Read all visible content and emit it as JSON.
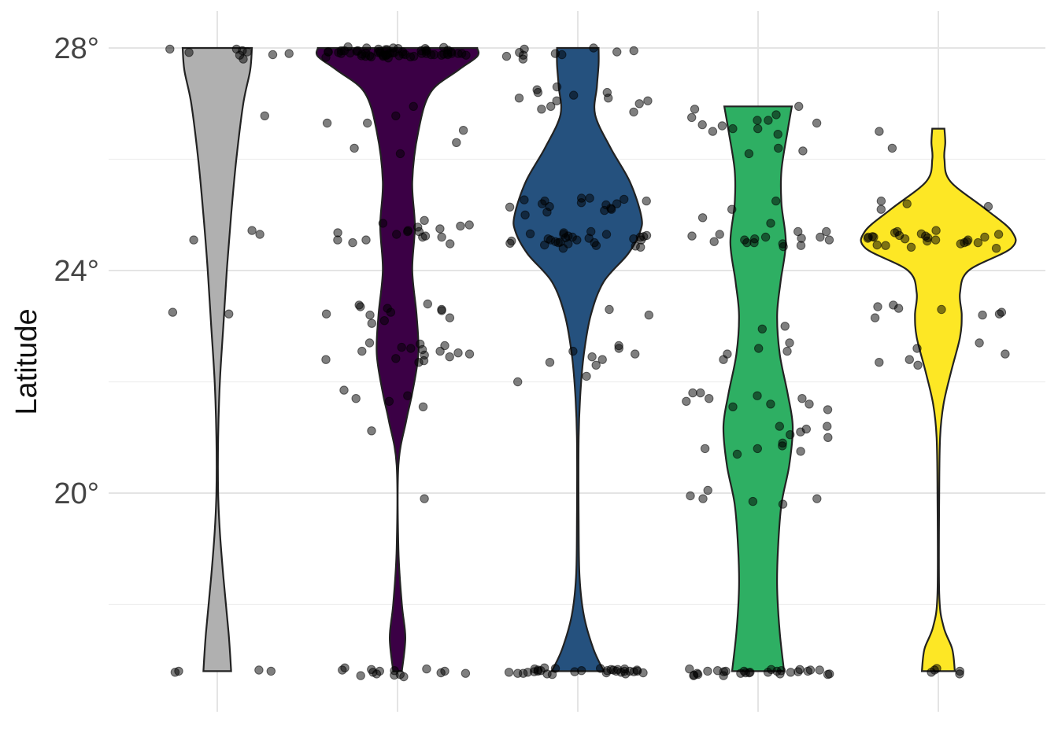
{
  "chart_data": {
    "type": "violin",
    "title": "",
    "xlabel": "",
    "ylabel": "Latitude",
    "ylim": [
      16.9,
      28.65
    ],
    "y_ticks": [
      {
        "value": 28,
        "label": "28°"
      },
      {
        "value": 24,
        "label": "24°"
      },
      {
        "value": 20,
        "label": "20°"
      }
    ],
    "y_minor_ticks": [
      26,
      22,
      18
    ],
    "grid": true,
    "legend": "none",
    "series": [
      {
        "fill": "#b0b0b0",
        "violin_profile": [
          [
            16.8,
            0.16
          ],
          [
            17.5,
            0.13
          ],
          [
            18.5,
            0.07
          ],
          [
            19.3,
            0.03
          ],
          [
            20.0,
            0.01
          ],
          [
            21.0,
            0.01
          ],
          [
            22.0,
            0.03
          ],
          [
            23.0,
            0.07
          ],
          [
            24.0,
            0.11
          ],
          [
            25.0,
            0.16
          ],
          [
            26.0,
            0.22
          ],
          [
            27.0,
            0.3
          ],
          [
            27.6,
            0.38
          ],
          [
            28.0,
            0.4
          ]
        ],
        "points": [
          27.87,
          27.92,
          27.98,
          27.9,
          27.8,
          27.95,
          27.98,
          27.88,
          27.93,
          26.78,
          24.72,
          24.55,
          24.65,
          23.25,
          23.22,
          16.8,
          16.78,
          16.82,
          16.8
        ]
      },
      {
        "fill": "#3b0045",
        "violin_profile": [
          [
            16.8,
            0.05
          ],
          [
            17.4,
            0.09
          ],
          [
            18.0,
            0.05
          ],
          [
            19.0,
            0.01
          ],
          [
            20.5,
            0.01
          ],
          [
            21.3,
            0.1
          ],
          [
            21.8,
            0.17
          ],
          [
            22.5,
            0.24
          ],
          [
            23.2,
            0.22
          ],
          [
            24.0,
            0.17
          ],
          [
            24.8,
            0.2
          ],
          [
            25.6,
            0.17
          ],
          [
            26.5,
            0.24
          ],
          [
            27.2,
            0.38
          ],
          [
            27.6,
            0.7
          ],
          [
            27.85,
            0.92
          ],
          [
            28.0,
            0.92
          ]
        ],
        "points": [
          27.9,
          27.95,
          28.0,
          27.88,
          27.92,
          27.85,
          27.98,
          27.9,
          27.93,
          27.86,
          27.97,
          27.89,
          27.91,
          28.02,
          27.84,
          27.94,
          27.99,
          27.87,
          27.91,
          27.88,
          27.95,
          27.82,
          27.9,
          28.01,
          27.86,
          27.93,
          27.88,
          27.96,
          27.9,
          27.84,
          27.92,
          27.99,
          27.87,
          27.94,
          27.89,
          27.91,
          27.85,
          27.97,
          27.9,
          27.88,
          27.93,
          27.86,
          27.95,
          27.9,
          27.83,
          28.0,
          27.91,
          27.88,
          27.94,
          27.87,
          27.92,
          27.89,
          27.96,
          27.85,
          27.9,
          27.93,
          27.88,
          27.91,
          27.86,
          27.95,
          26.65,
          26.78,
          26.52,
          26.2,
          26.1,
          26.3,
          26.95,
          26.65,
          24.78,
          24.7,
          24.85,
          24.6,
          24.9,
          24.55,
          24.75,
          24.82,
          24.65,
          24.5,
          24.7,
          24.6,
          24.48,
          24.72,
          24.62,
          24.55,
          24.8,
          24.68,
          23.35,
          23.25,
          23.3,
          23.2,
          23.15,
          23.38,
          23.28,
          23.1,
          23.32,
          23.22,
          23.05,
          23.4,
          22.65,
          22.55,
          22.5,
          22.6,
          22.45,
          22.7,
          22.4,
          22.55,
          22.62,
          22.35,
          22.48,
          22.58,
          22.42,
          22.68,
          22.52,
          22.38,
          21.85,
          21.75,
          21.7,
          21.55,
          21.65,
          21.12,
          19.9,
          16.75,
          16.8,
          16.72,
          16.78,
          16.82,
          16.7,
          16.76,
          16.84,
          16.74,
          16.8,
          16.77,
          16.83,
          16.73,
          16.81,
          16.86
        ]
      },
      {
        "fill": "#25517e",
        "violin_profile": [
          [
            16.8,
            0.3
          ],
          [
            17.2,
            0.18
          ],
          [
            17.8,
            0.07
          ],
          [
            18.5,
            0.02
          ],
          [
            19.5,
            0.01
          ],
          [
            21.0,
            0.01
          ],
          [
            21.8,
            0.03
          ],
          [
            22.5,
            0.07
          ],
          [
            23.2,
            0.15
          ],
          [
            23.8,
            0.3
          ],
          [
            24.3,
            0.58
          ],
          [
            24.7,
            0.72
          ],
          [
            25.0,
            0.73
          ],
          [
            25.6,
            0.6
          ],
          [
            26.2,
            0.38
          ],
          [
            26.8,
            0.2
          ],
          [
            27.3,
            0.22
          ],
          [
            27.7,
            0.24
          ],
          [
            28.0,
            0.24
          ]
        ],
        "points": [
          27.95,
          27.9,
          27.85,
          28.0,
          27.88,
          27.92,
          27.98,
          27.8,
          27.87,
          27.93,
          27.1,
          27.2,
          27.05,
          27.25,
          27.15,
          27.0,
          26.95,
          27.1,
          26.85,
          27.3,
          27.05,
          27.2,
          26.9,
          25.3,
          25.25,
          25.2,
          25.1,
          25.15,
          25.28,
          25.05,
          25.22,
          25.12,
          25.3,
          25.18,
          25.08,
          25.25,
          25.0,
          25.2,
          25.14,
          25.27,
          24.55,
          24.6,
          24.5,
          24.65,
          24.45,
          24.58,
          24.52,
          24.62,
          24.48,
          24.7,
          24.55,
          24.42,
          24.6,
          24.5,
          24.65,
          24.57,
          24.46,
          24.53,
          24.68,
          24.4,
          24.55,
          24.63,
          24.49,
          24.59,
          24.51,
          24.66,
          24.44,
          24.57,
          24.61,
          23.3,
          23.2,
          22.6,
          22.55,
          22.4,
          22.5,
          22.35,
          22.65,
          22.45,
          22.3,
          22.1,
          22.0,
          16.8,
          16.82,
          16.78,
          16.85,
          16.75,
          16.8,
          16.83,
          16.77,
          16.81,
          16.79,
          16.84,
          16.76,
          16.8,
          16.82,
          16.78,
          16.86,
          16.74,
          16.8,
          16.83,
          16.77,
          16.81,
          16.79,
          16.75,
          16.84,
          16.8,
          16.82,
          16.78,
          16.76,
          16.81,
          16.85,
          16.79
        ]
      },
      {
        "fill": "#2eaf63",
        "violin_profile": [
          [
            16.8,
            0.3
          ],
          [
            17.5,
            0.25
          ],
          [
            18.3,
            0.22
          ],
          [
            19.0,
            0.23
          ],
          [
            19.8,
            0.27
          ],
          [
            20.5,
            0.36
          ],
          [
            21.2,
            0.4
          ],
          [
            21.8,
            0.34
          ],
          [
            22.5,
            0.25
          ],
          [
            23.2,
            0.22
          ],
          [
            23.8,
            0.26
          ],
          [
            24.5,
            0.32
          ],
          [
            25.2,
            0.27
          ],
          [
            25.8,
            0.27
          ],
          [
            26.5,
            0.34
          ],
          [
            26.95,
            0.39
          ]
        ],
        "points": [
          26.7,
          26.9,
          26.55,
          26.8,
          26.65,
          26.5,
          26.75,
          26.6,
          26.95,
          26.55,
          26.45,
          26.7,
          26.62,
          26.15,
          26.1,
          26.2,
          25.25,
          25.1,
          24.95,
          24.85,
          24.6,
          24.7,
          24.5,
          24.62,
          24.55,
          24.45,
          24.58,
          24.65,
          24.52,
          24.48,
          24.6,
          24.55,
          24.5,
          24.7,
          24.43,
          24.57,
          23.0,
          22.95,
          22.6,
          22.55,
          22.7,
          22.5,
          22.4,
          21.8,
          21.7,
          21.6,
          21.75,
          21.55,
          21.65,
          21.8,
          21.5,
          21.7,
          21.6,
          21.2,
          21.1,
          21.05,
          21.15,
          21.0,
          21.2,
          20.9,
          20.8,
          20.75,
          20.7,
          20.85,
          20.8,
          19.9,
          19.85,
          19.95,
          19.8,
          19.9,
          20.05,
          16.75,
          16.8,
          16.78,
          16.72,
          16.82,
          16.77,
          16.8,
          16.74,
          16.83,
          16.79,
          16.76,
          16.81,
          16.78,
          16.73,
          16.84,
          16.8,
          16.77,
          16.82,
          16.75,
          16.79,
          16.8,
          16.74,
          16.83,
          16.78,
          16.81,
          16.76,
          16.8,
          16.72
        ]
      },
      {
        "fill": "#fde725",
        "violin_profile": [
          [
            16.8,
            0.19
          ],
          [
            17.2,
            0.16
          ],
          [
            17.6,
            0.06
          ],
          [
            18.2,
            0.01
          ],
          [
            20.0,
            0.01
          ],
          [
            21.0,
            0.02
          ],
          [
            21.6,
            0.06
          ],
          [
            22.2,
            0.15
          ],
          [
            22.8,
            0.25
          ],
          [
            23.2,
            0.27
          ],
          [
            23.6,
            0.25
          ],
          [
            24.0,
            0.35
          ],
          [
            24.4,
            0.84
          ],
          [
            24.7,
            0.85
          ],
          [
            25.1,
            0.55
          ],
          [
            25.6,
            0.14
          ],
          [
            26.0,
            0.07
          ],
          [
            26.3,
            0.08
          ],
          [
            26.55,
            0.07
          ]
        ],
        "points": [
          26.5,
          26.2,
          25.25,
          25.2,
          25.15,
          25.1,
          24.72,
          24.65,
          24.6,
          24.55,
          24.5,
          24.62,
          24.58,
          24.45,
          24.68,
          24.52,
          24.6,
          24.48,
          24.7,
          24.55,
          24.63,
          24.5,
          24.6,
          24.57,
          24.42,
          24.66,
          24.53,
          24.59,
          24.46,
          24.61,
          24.4,
          23.35,
          23.3,
          23.25,
          23.2,
          23.38,
          23.15,
          23.32,
          23.22,
          22.7,
          22.6,
          22.5,
          22.4,
          22.35,
          22.3,
          16.8,
          16.85,
          16.78,
          16.82,
          16.75
        ]
      }
    ]
  },
  "colors": {
    "outline": "#222222",
    "points": "#000000",
    "grid": "#e4e4e4"
  }
}
